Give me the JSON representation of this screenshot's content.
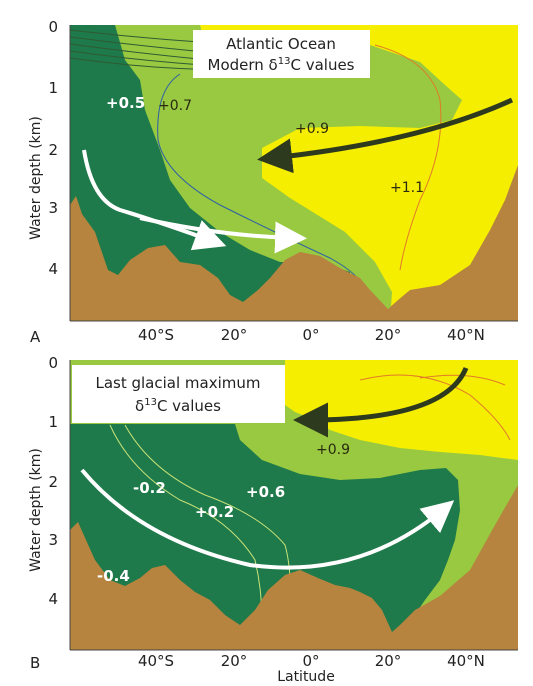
{
  "panel_a": {
    "letter": "A",
    "title_line1": "Atlantic Ocean",
    "title_line2_prefix": "Modern δ",
    "title_line2_sup": "13",
    "title_line2_suffix": "C values",
    "values": {
      "v1": "+0.5",
      "v2": "+0.7",
      "v3": "+0.9",
      "v4": "+1.1"
    }
  },
  "panel_b": {
    "letter": "B",
    "title_line1": "Last glacial maximum",
    "title_line2_prefix": "δ",
    "title_line2_sup": "13",
    "title_line2_suffix": "C values",
    "values": {
      "v1": "+0.9",
      "v2": "-0.2",
      "v3": "+0.6",
      "v4": "+0.2",
      "v5": "-0.4"
    }
  },
  "axes": {
    "ylabel": "Water depth (km)",
    "xlabel": "Latitude",
    "y_ticks": [
      "0",
      "1",
      "2",
      "3",
      "4"
    ],
    "x_ticks": [
      "40°S",
      "20°",
      "0°",
      "20°",
      "40°N"
    ]
  },
  "colors": {
    "surface_yellow": "#f6ee00",
    "light_green": "#98c940",
    "dark_green": "#1e7a4a",
    "seafloor_brown": "#b6843e",
    "arrow_dark": "#2e3a1e",
    "arrow_white": "#ffffff"
  }
}
